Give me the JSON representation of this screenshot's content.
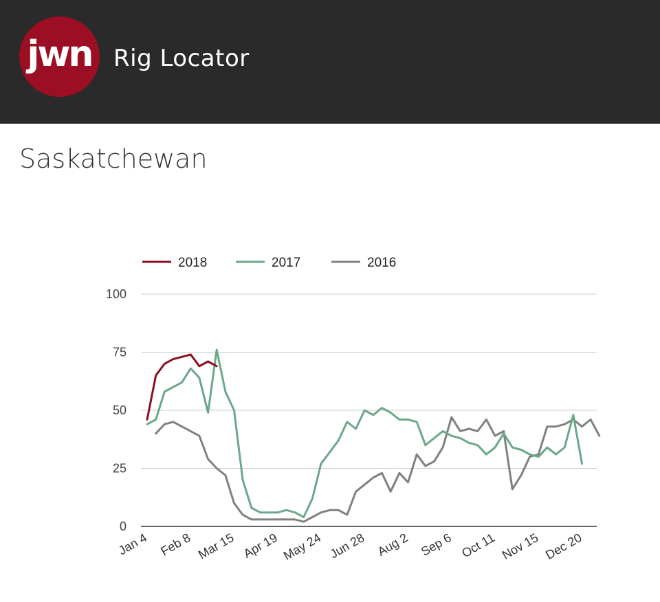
{
  "header": {
    "logo_text": "jwn",
    "app_title": "Rig Locator"
  },
  "page": {
    "title": "Saskatchewan"
  },
  "colors": {
    "header_bg": "#2a2a2a",
    "logo_bg": "#9b0e24",
    "2018": "#8a0f22",
    "2017": "#6ba889",
    "2016": "#808080"
  },
  "chart_data": {
    "type": "line",
    "title": "",
    "xlabel": "",
    "ylabel": "",
    "ylim": [
      0,
      100
    ],
    "yticks": [
      0,
      25,
      50,
      75,
      100
    ],
    "xticks": [
      "Jan 4",
      "Feb 8",
      "Mar 15",
      "Apr 19",
      "May 24",
      "Jun 28",
      "Aug 2",
      "Sep 6",
      "Oct 11",
      "Nov 15",
      "Dec 20"
    ],
    "x_week_numbers": [
      1,
      2,
      3,
      4,
      5,
      6,
      7,
      8,
      9,
      10,
      11,
      12,
      13,
      14,
      15,
      16,
      17,
      18,
      19,
      20,
      21,
      22,
      23,
      24,
      25,
      26,
      27,
      28,
      29,
      30,
      31,
      32,
      33,
      34,
      35,
      36,
      37,
      38,
      39,
      40,
      41,
      42,
      43,
      44,
      45,
      46,
      47,
      48,
      49,
      50,
      51,
      52,
      53
    ],
    "grid": true,
    "legend_position": "top-left",
    "series": [
      {
        "name": "2018",
        "color": "#8a0f22",
        "values": [
          46,
          65,
          70,
          72,
          73,
          74,
          69,
          71,
          69
        ]
      },
      {
        "name": "2017",
        "color": "#6ba889",
        "values": [
          44,
          46,
          58,
          60,
          62,
          68,
          64,
          49,
          76,
          58,
          50,
          20,
          8,
          6,
          6,
          6,
          7,
          6,
          4,
          12,
          27,
          32,
          37,
          45,
          42,
          50,
          48,
          51,
          49,
          46,
          46,
          45,
          35,
          38,
          41,
          39,
          38,
          36,
          35,
          31,
          34,
          40,
          34,
          33,
          31,
          30,
          34,
          31,
          34,
          48,
          27
        ]
      },
      {
        "name": "2016",
        "color": "#808080",
        "values": [
          null,
          40,
          44,
          45,
          43,
          41,
          39,
          29,
          25,
          22,
          10,
          5,
          3,
          3,
          3,
          3,
          3,
          3,
          2,
          4,
          6,
          7,
          7,
          5,
          15,
          18,
          21,
          23,
          15,
          23,
          19,
          31,
          26,
          28,
          34,
          47,
          41,
          42,
          41,
          46,
          39,
          41,
          16,
          22,
          30,
          31,
          43,
          43,
          44,
          46,
          43,
          46,
          39
        ]
      }
    ]
  }
}
